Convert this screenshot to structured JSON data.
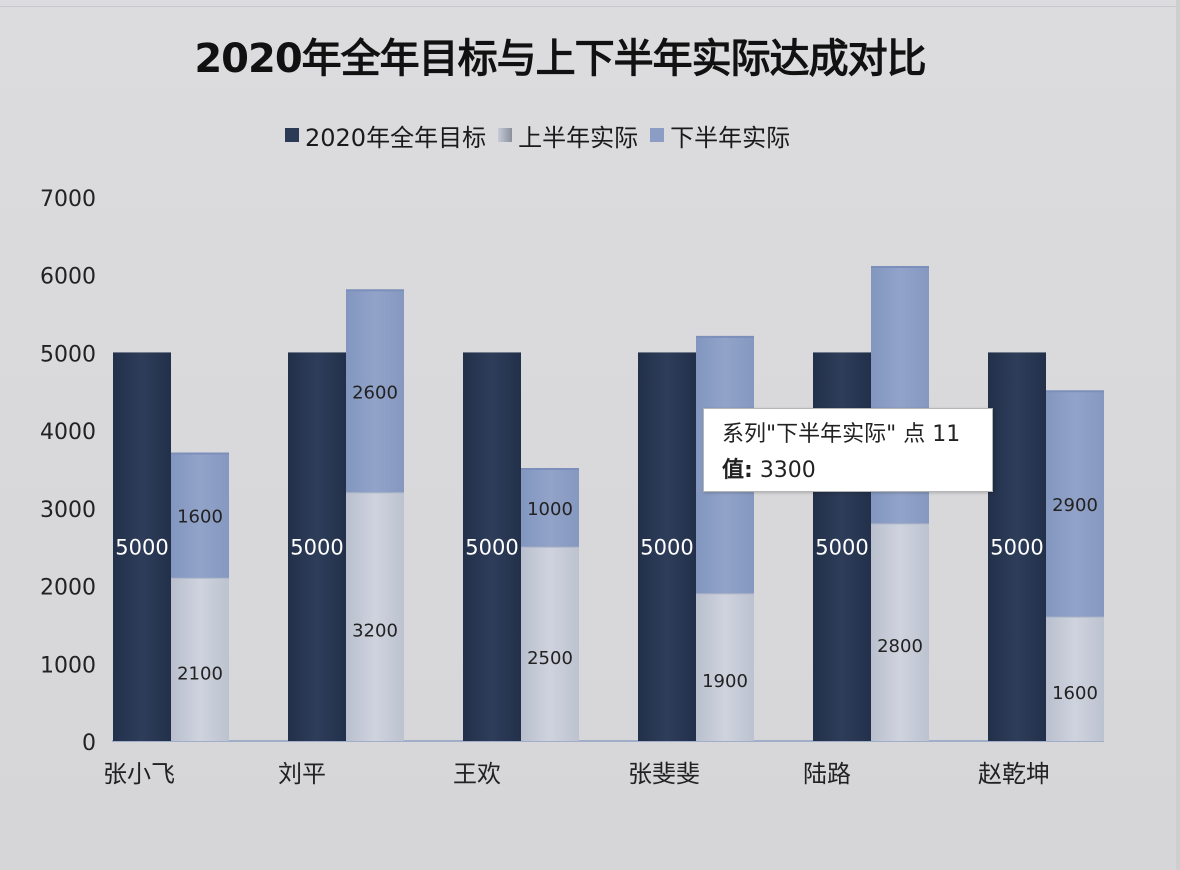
{
  "chart_data": {
    "type": "bar",
    "title": "2020年全年目标与上下半年实际达成对比",
    "categories": [
      "张小飞",
      "刘平",
      "王欢",
      "张斐斐",
      "陆路",
      "赵乾坤"
    ],
    "series": [
      {
        "name": "2020年全年目标",
        "color": "#2b3a55",
        "values": [
          5000,
          5000,
          5000,
          5000,
          5000,
          5000
        ]
      },
      {
        "name": "上半年实际",
        "color": "#c6cbd8",
        "values": [
          2100,
          3200,
          2500,
          1900,
          2800,
          1600
        ]
      },
      {
        "name": "下半年实际",
        "color": "#8b9dc4",
        "values": [
          1600,
          2600,
          1000,
          3300,
          null,
          2900
        ]
      }
    ],
    "stacked_series": [
      "上半年实际",
      "下半年实际"
    ],
    "yticks": [
      "0",
      "1000",
      "2000",
      "3000",
      "4000",
      "5000",
      "6000",
      "7000"
    ],
    "ylim": [
      0,
      7000
    ],
    "grid": false,
    "legend_position": "top"
  },
  "tooltip": {
    "line1": "系列\"下半年实际\" 点 11",
    "line2_label": "值:",
    "line2_value": "3300"
  }
}
